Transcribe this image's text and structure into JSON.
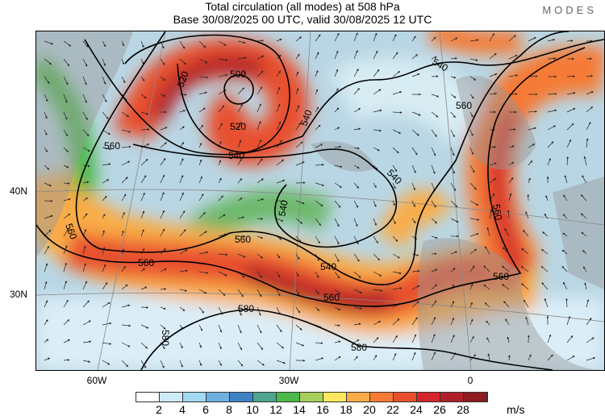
{
  "title": "Total circulation (all modes) at 508 hPa",
  "subtitle": "Base 30/08/2025 00 UTC, valid 30/08/2025 12 UTC",
  "logo": "MODES",
  "lat_labels": [
    "40N",
    "30N"
  ],
  "lon_labels": [
    "60W",
    "30W",
    "0"
  ],
  "colorbar": {
    "unit": "m/s",
    "ticks": [
      "2",
      "4",
      "6",
      "8",
      "10",
      "12",
      "14",
      "16",
      "18",
      "20",
      "22",
      "24",
      "26",
      "28"
    ],
    "colors": [
      "#ffffff",
      "#cdeaf7",
      "#a3d8f3",
      "#6fb0de",
      "#3f82c4",
      "#4ea490",
      "#4cb74a",
      "#a6d05a",
      "#fde85e",
      "#f9ac47",
      "#f57a34",
      "#e8502d",
      "#d5262b",
      "#b01f28",
      "#8f1a1f"
    ]
  },
  "contour_labels": {
    "c500": "500",
    "c520": "520",
    "c540": "540",
    "c560": "560",
    "c580": "580"
  }
}
